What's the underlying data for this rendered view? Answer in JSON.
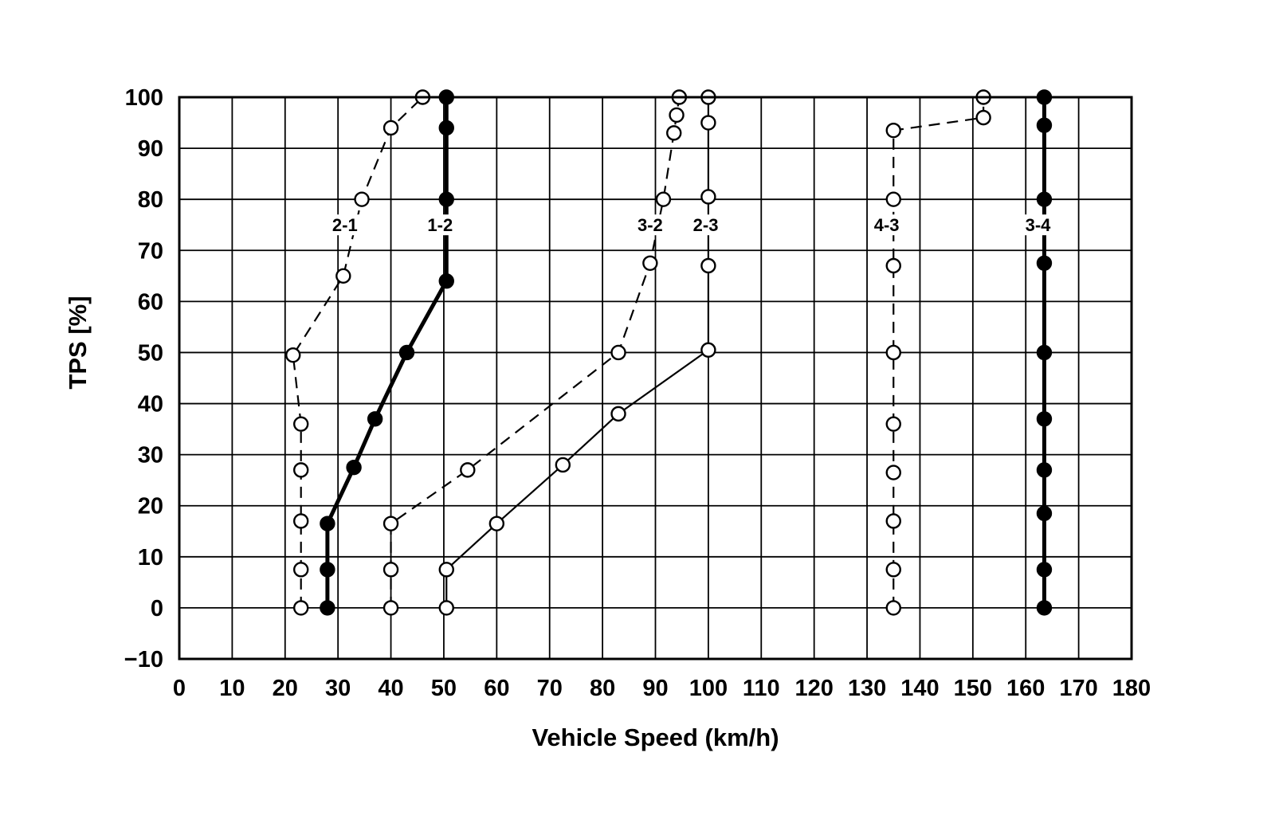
{
  "chart_data": {
    "type": "line",
    "title": "",
    "xlabel": "Vehicle Speed (km/h)",
    "ylabel": "TPS [%]",
    "xlim": [
      0,
      180
    ],
    "ylim": [
      -10,
      100
    ],
    "x_tick_step": 10,
    "y_tick_step": 10,
    "grid": true,
    "legend": "inline-labels",
    "line_color": "#000000",
    "background": "#ffffff",
    "series": [
      {
        "name": "2-1",
        "kind": "downshift",
        "style": "dashed",
        "marker": "open",
        "line_width": 2.2,
        "label_pos": {
          "x": 31.3,
          "y": 75
        },
        "points": [
          [
            23,
            0
          ],
          [
            23,
            7.5
          ],
          [
            23,
            17
          ],
          [
            23,
            27
          ],
          [
            23,
            36
          ],
          [
            21.5,
            49.5
          ],
          [
            31,
            65
          ],
          [
            34.5,
            80
          ],
          [
            40,
            94
          ],
          [
            46,
            100
          ]
        ]
      },
      {
        "name": "1-2",
        "kind": "upshift",
        "style": "solid",
        "marker": "filled",
        "line_width": 5,
        "label_pos": {
          "x": 49.3,
          "y": 75
        },
        "points": [
          [
            28,
            0
          ],
          [
            28,
            7.5
          ],
          [
            28,
            16.5
          ],
          [
            33,
            27.5
          ],
          [
            37,
            37
          ],
          [
            43,
            50
          ],
          [
            50.5,
            64
          ],
          [
            50.5,
            80
          ],
          [
            50.5,
            94
          ],
          [
            50.5,
            100
          ]
        ]
      },
      {
        "name": "3-2",
        "kind": "downshift",
        "style": "dashed",
        "marker": "open",
        "line_width": 2.2,
        "label_pos": {
          "x": 89,
          "y": 75
        },
        "points": [
          [
            40,
            0
          ],
          [
            40,
            7.5
          ],
          [
            40,
            16.5
          ],
          [
            54.5,
            27
          ],
          [
            83,
            50
          ],
          [
            89,
            67.5
          ],
          [
            91.5,
            80
          ],
          [
            93.5,
            93
          ],
          [
            94,
            96.5
          ],
          [
            94.5,
            100
          ]
        ]
      },
      {
        "name": "2-3",
        "kind": "upshift",
        "style": "solid",
        "marker": "open",
        "line_width": 2.2,
        "label_pos": {
          "x": 99.5,
          "y": 75
        },
        "points": [
          [
            50.5,
            0
          ],
          [
            50.5,
            7.5
          ],
          [
            60,
            16.5
          ],
          [
            72.5,
            28
          ],
          [
            83,
            38
          ],
          [
            100,
            50.5
          ],
          [
            100,
            67
          ],
          [
            100,
            80.5
          ],
          [
            100,
            95
          ],
          [
            100,
            100
          ]
        ]
      },
      {
        "name": "4-3",
        "kind": "downshift",
        "style": "dashed",
        "marker": "open",
        "line_width": 2.2,
        "label_pos": {
          "x": 133.7,
          "y": 75
        },
        "points": [
          [
            135,
            0
          ],
          [
            135,
            7.5
          ],
          [
            135,
            17
          ],
          [
            135,
            26.5
          ],
          [
            135,
            36
          ],
          [
            135,
            50
          ],
          [
            135,
            67
          ],
          [
            135,
            80
          ],
          [
            135,
            93.5
          ],
          [
            152,
            96
          ],
          [
            152,
            100
          ]
        ]
      },
      {
        "name": "3-4",
        "kind": "upshift",
        "style": "solid",
        "marker": "filled",
        "line_width": 5,
        "label_pos": {
          "x": 162.3,
          "y": 75
        },
        "points": [
          [
            163.5,
            0
          ],
          [
            163.5,
            7.5
          ],
          [
            163.5,
            18.5
          ],
          [
            163.5,
            27
          ],
          [
            163.5,
            37
          ],
          [
            163.5,
            50
          ],
          [
            163.5,
            67.5
          ],
          [
            163.5,
            80
          ],
          [
            163.5,
            94.5
          ],
          [
            163.5,
            100
          ]
        ]
      }
    ]
  }
}
